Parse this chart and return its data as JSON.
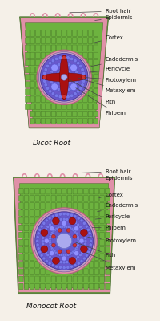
{
  "title1": "Dicot Root",
  "title2": "Monocot Root",
  "bg_color": "#f5f0e8",
  "green_dark": "#3a6020",
  "green_cell": "#6db33f",
  "pink_epidermis": "#e090a8",
  "purple_vascular": "#6858cc",
  "red_xylem": "#aa1111",
  "font_size": 5.0,
  "label_color": "#111111",
  "dicot_labels": [
    "Root hair",
    "Epidermis",
    "Cortex",
    "Endodermis",
    "Pericycle",
    "Protoxylem",
    "Metaxylem",
    "Pith",
    "Phloem"
  ],
  "monocot_labels": [
    "Root hair",
    "Epidermis",
    "Cortex",
    "Endodermis",
    "Pericycle",
    "Phloem",
    "Protoxylem",
    "Pith",
    "Metaxylem"
  ]
}
